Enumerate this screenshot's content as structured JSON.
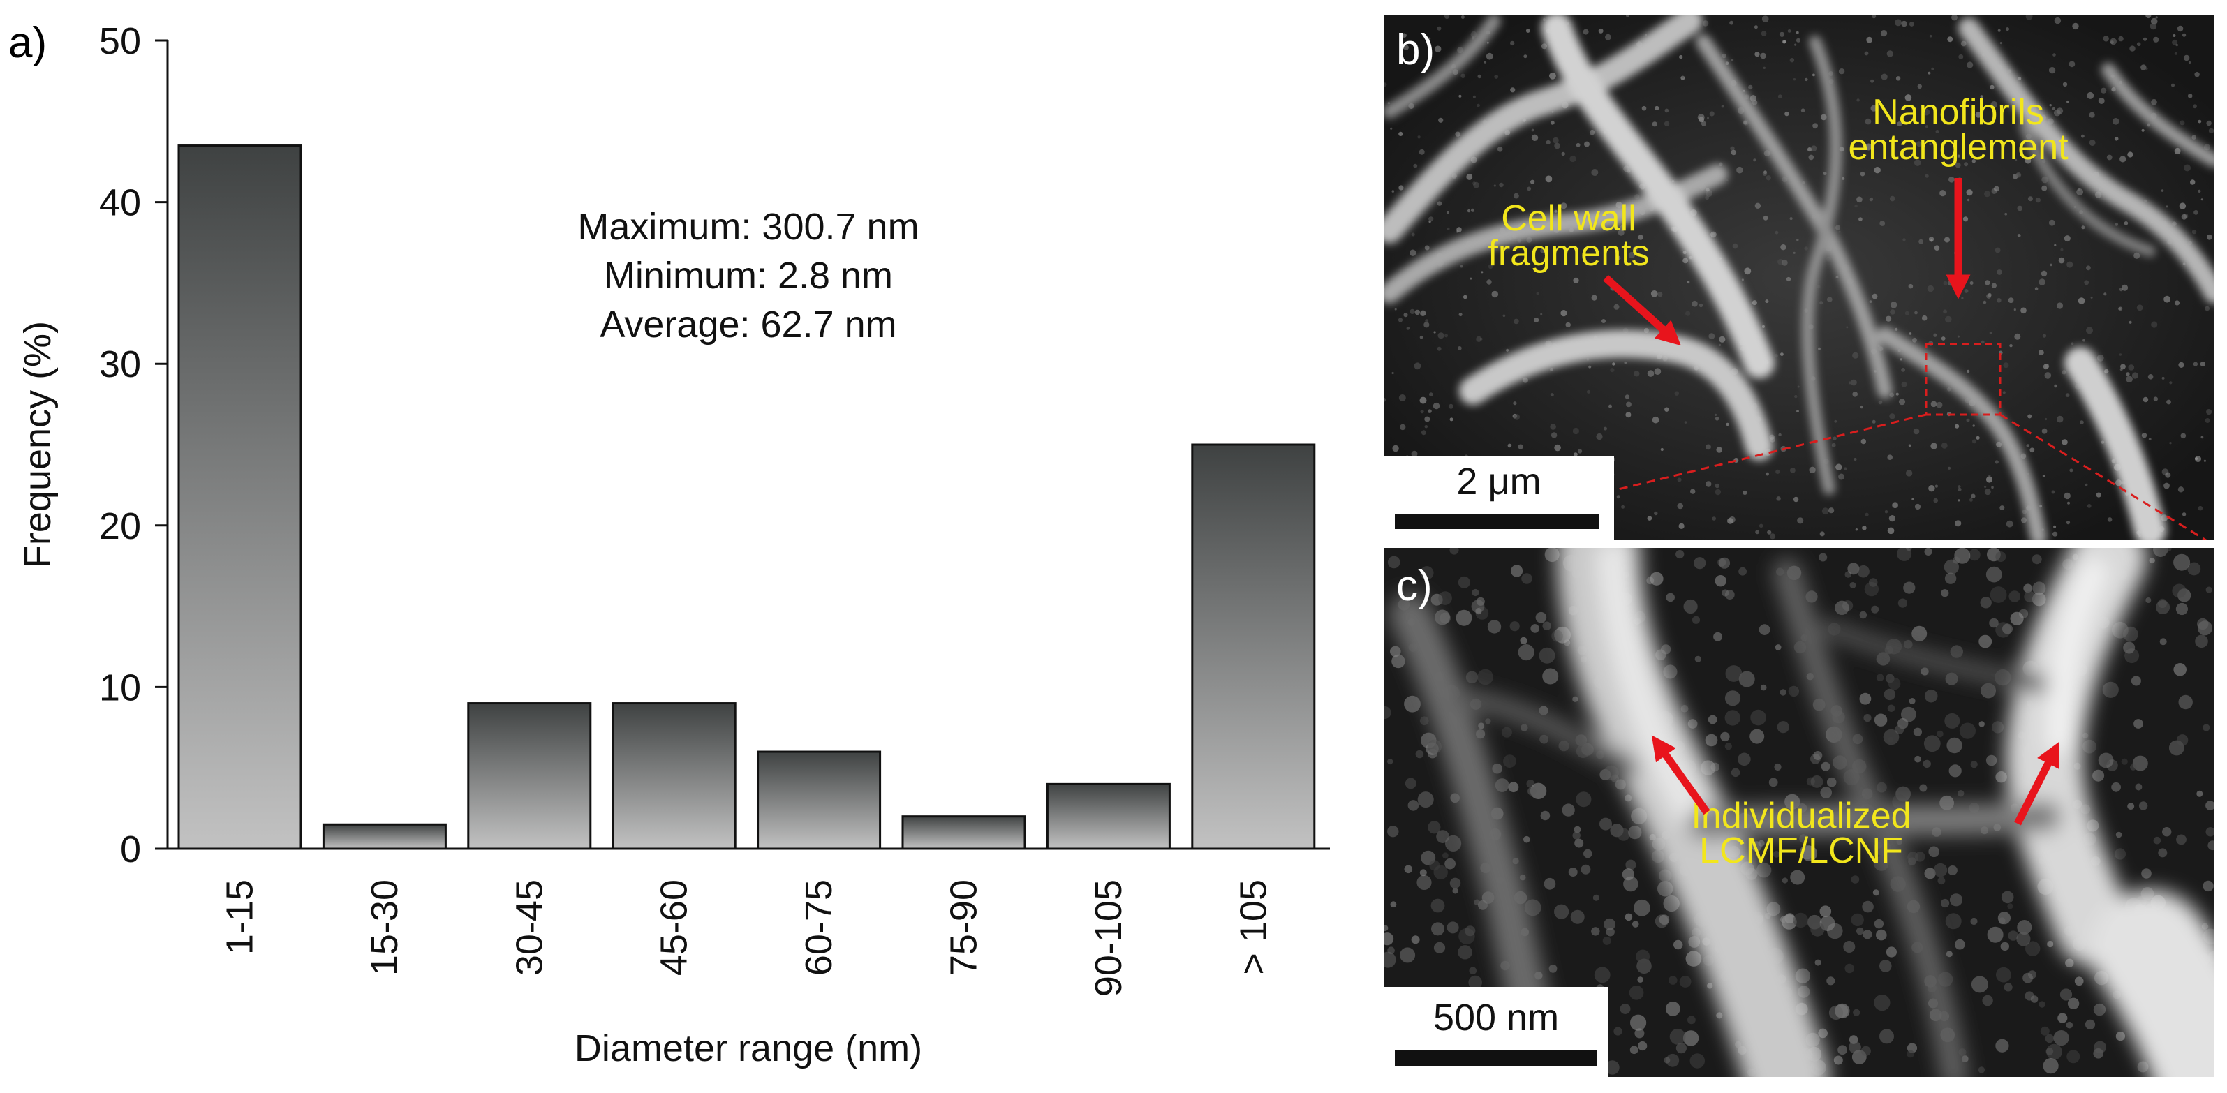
{
  "chart_data": {
    "type": "bar",
    "panel_label": "a)",
    "categories": [
      "1-15",
      "15-30",
      "30-45",
      "45-60",
      "60-75",
      "75-90",
      "90-105",
      "> 105"
    ],
    "values": [
      43.5,
      1.5,
      9,
      9,
      6,
      2,
      4,
      25
    ],
    "xlabel": "Diameter range (nm)",
    "ylabel": "Frequency (%)",
    "ylim": [
      0,
      50
    ],
    "yticks": [
      0,
      10,
      20,
      30,
      40,
      50
    ],
    "grid": false,
    "legend": "none",
    "annotations": [
      "Maximum: 300.7 nm",
      "Minimum: 2.8 nm",
      "Average: 62.7 nm"
    ],
    "bar_gradient": {
      "top": "#3f4242",
      "bottom": "#c2c2c2"
    }
  },
  "sem_panels": [
    {
      "panel_label": "b)",
      "scale_bar": "2 μm",
      "labels": [
        {
          "lines": [
            "Nanofibrils",
            "entanglement"
          ]
        },
        {
          "lines": [
            "Cell wall",
            "fragments"
          ]
        }
      ]
    },
    {
      "panel_label": "c)",
      "scale_bar": "500 nm",
      "labels": [
        {
          "lines": [
            "Individualized",
            "LCMF/LCNF"
          ]
        }
      ]
    }
  ],
  "colors": {
    "label_yellow": "#f2e61c",
    "arrow_red": "#e8141c",
    "inset_red": "#d81e1e"
  }
}
